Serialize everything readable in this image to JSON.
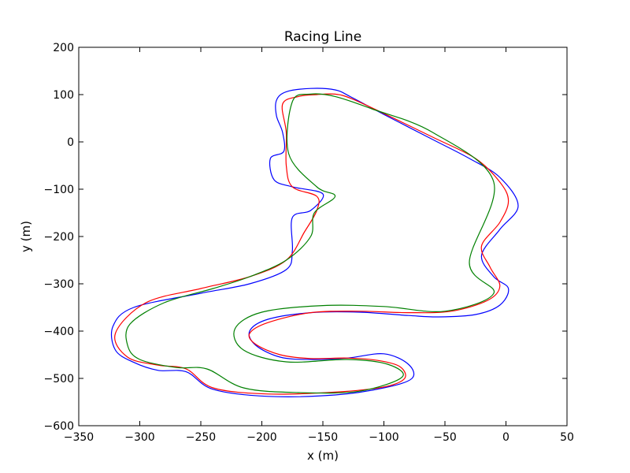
{
  "chart_data": {
    "type": "line",
    "title": "Racing Line",
    "xlabel": "x (m)",
    "ylabel": "y (m)",
    "xlim": [
      -350,
      50
    ],
    "ylim": [
      -600,
      200
    ],
    "xticks": [
      -350,
      -300,
      -250,
      -200,
      -150,
      -100,
      -50,
      0,
      50
    ],
    "yticks": [
      -600,
      -500,
      -400,
      -300,
      -200,
      -100,
      0,
      100,
      200
    ],
    "grid": false,
    "series": [
      {
        "color": "#0000ff",
        "points": [
          [
            -188,
            88
          ],
          [
            -180,
            106
          ],
          [
            -160,
            113
          ],
          [
            -140,
            110
          ],
          [
            -127,
            95
          ],
          [
            -100,
            58
          ],
          [
            -60,
            5
          ],
          [
            -30,
            -35
          ],
          [
            -5,
            -75
          ],
          [
            10,
            -135
          ],
          [
            -5,
            -185
          ],
          [
            -20,
            -240
          ],
          [
            -10,
            -285
          ],
          [
            2,
            -310
          ],
          [
            -5,
            -345
          ],
          [
            -25,
            -365
          ],
          [
            -55,
            -370
          ],
          [
            -80,
            -367
          ],
          [
            -120,
            -360
          ],
          [
            -160,
            -361
          ],
          [
            -195,
            -375
          ],
          [
            -210,
            -400
          ],
          [
            -205,
            -430
          ],
          [
            -185,
            -455
          ],
          [
            -160,
            -460
          ],
          [
            -130,
            -457
          ],
          [
            -100,
            -448
          ],
          [
            -80,
            -470
          ],
          [
            -77,
            -500
          ],
          [
            -100,
            -520
          ],
          [
            -140,
            -535
          ],
          [
            -195,
            -538
          ],
          [
            -240,
            -523
          ],
          [
            -262,
            -486
          ],
          [
            -285,
            -483
          ],
          [
            -305,
            -466
          ],
          [
            -320,
            -440
          ],
          [
            -322,
            -390
          ],
          [
            -305,
            -350
          ],
          [
            -250,
            -320
          ],
          [
            -210,
            -300
          ],
          [
            -180,
            -270
          ],
          [
            -175,
            -230
          ],
          [
            -175,
            -160
          ],
          [
            -160,
            -145
          ],
          [
            -150,
            -110
          ],
          [
            -175,
            -95
          ],
          [
            -190,
            -80
          ],
          [
            -193,
            -35
          ],
          [
            -182,
            -20
          ],
          [
            -183,
            20
          ],
          [
            -188,
            55
          ],
          [
            -188,
            88
          ]
        ]
      },
      {
        "color": "#ff0000",
        "points": [
          [
            -183,
            80
          ],
          [
            -170,
            96
          ],
          [
            -155,
            100
          ],
          [
            -140,
            101
          ],
          [
            -127,
            92
          ],
          [
            -100,
            60
          ],
          [
            -60,
            10
          ],
          [
            -25,
            -35
          ],
          [
            -5,
            -85
          ],
          [
            2,
            -125
          ],
          [
            -5,
            -170
          ],
          [
            -20,
            -220
          ],
          [
            -13,
            -265
          ],
          [
            -5,
            -305
          ],
          [
            -15,
            -335
          ],
          [
            -45,
            -358
          ],
          [
            -80,
            -361
          ],
          [
            -120,
            -358
          ],
          [
            -160,
            -361
          ],
          [
            -195,
            -382
          ],
          [
            -210,
            -405
          ],
          [
            -205,
            -428
          ],
          [
            -185,
            -450
          ],
          [
            -160,
            -458
          ],
          [
            -130,
            -457
          ],
          [
            -105,
            -462
          ],
          [
            -87,
            -475
          ],
          [
            -83,
            -500
          ],
          [
            -100,
            -518
          ],
          [
            -140,
            -529
          ],
          [
            -195,
            -533
          ],
          [
            -240,
            -520
          ],
          [
            -262,
            -480
          ],
          [
            -285,
            -472
          ],
          [
            -310,
            -455
          ],
          [
            -320,
            -405
          ],
          [
            -295,
            -340
          ],
          [
            -250,
            -310
          ],
          [
            -210,
            -285
          ],
          [
            -180,
            -250
          ],
          [
            -165,
            -190
          ],
          [
            -155,
            -145
          ],
          [
            -155,
            -115
          ],
          [
            -175,
            -95
          ],
          [
            -180,
            -50
          ],
          [
            -180,
            20
          ],
          [
            -183,
            80
          ]
        ]
      },
      {
        "color": "#008000",
        "points": [
          [
            -175,
            85
          ],
          [
            -160,
            101
          ],
          [
            -140,
            96
          ],
          [
            -110,
            70
          ],
          [
            -60,
            20
          ],
          [
            -10,
            -85
          ],
          [
            -30,
            -255
          ],
          [
            -10,
            -320
          ],
          [
            -50,
            -358
          ],
          [
            -100,
            -348
          ],
          [
            -150,
            -346
          ],
          [
            -200,
            -360
          ],
          [
            -222,
            -395
          ],
          [
            -215,
            -440
          ],
          [
            -180,
            -465
          ],
          [
            -130,
            -460
          ],
          [
            -97,
            -470
          ],
          [
            -85,
            -497
          ],
          [
            -120,
            -527
          ],
          [
            -170,
            -530
          ],
          [
            -215,
            -520
          ],
          [
            -245,
            -480
          ],
          [
            -270,
            -477
          ],
          [
            -300,
            -460
          ],
          [
            -310,
            -430
          ],
          [
            -308,
            -385
          ],
          [
            -280,
            -340
          ],
          [
            -240,
            -310
          ],
          [
            -210,
            -285
          ],
          [
            -180,
            -250
          ],
          [
            -160,
            -200
          ],
          [
            -157,
            -150
          ],
          [
            -140,
            -115
          ],
          [
            -155,
            -95
          ],
          [
            -178,
            -25
          ],
          [
            -175,
            85
          ]
        ]
      }
    ]
  }
}
